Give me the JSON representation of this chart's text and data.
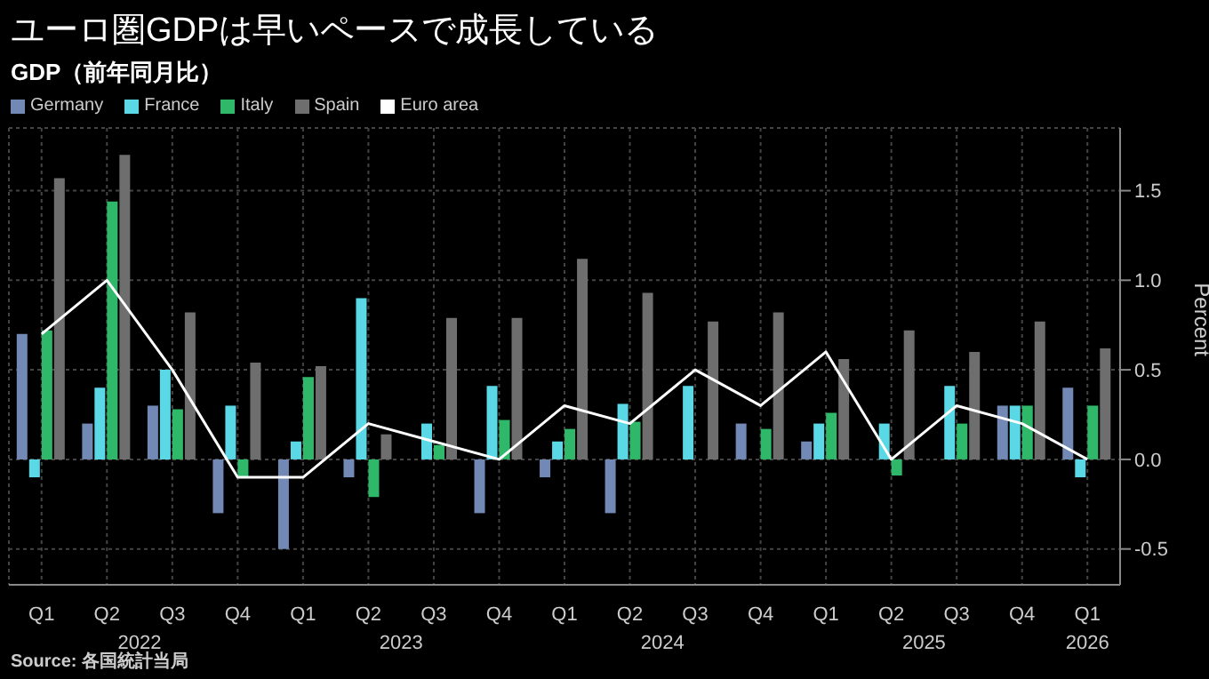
{
  "chart_data": {
    "type": "bar",
    "title": "ユーロ圏GDPは早いペースで成長している",
    "subtitle": "GDP（前年同月比）",
    "ylabel": "Percent",
    "categories": [
      "Q1",
      "Q2",
      "Q3",
      "Q4",
      "Q1",
      "Q2",
      "Q3",
      "Q4",
      "Q1",
      "Q2",
      "Q3",
      "Q4",
      "Q1",
      "Q2",
      "Q3",
      "Q4",
      "Q1"
    ],
    "series": [
      {
        "name": "Germany",
        "color": "#7289b5",
        "values": [
          0.7,
          0.2,
          0.3,
          -0.3,
          -0.5,
          -0.1,
          0.0,
          -0.3,
          -0.1,
          -0.3,
          0.0,
          0.2,
          0.1,
          0.0,
          0.0,
          0.3,
          0.4
        ]
      },
      {
        "name": "France",
        "color": "#5ad8e6",
        "values": [
          -0.1,
          0.4,
          0.5,
          0.3,
          0.1,
          0.9,
          0.2,
          0.41,
          0.1,
          0.31,
          0.41,
          0.0,
          0.2,
          0.2,
          0.41,
          0.3,
          -0.1
        ]
      },
      {
        "name": "Italy",
        "color": "#2fb86a",
        "values": [
          0.72,
          1.44,
          0.28,
          -0.1,
          0.46,
          -0.21,
          0.08,
          0.22,
          0.17,
          0.21,
          0.0,
          0.17,
          0.26,
          -0.09,
          0.2,
          0.3,
          0.3
        ]
      },
      {
        "name": "Spain",
        "color": "#6e6e6e",
        "values": [
          1.57,
          1.7,
          0.82,
          0.54,
          0.52,
          0.14,
          0.79,
          0.79,
          1.12,
          0.93,
          0.77,
          0.82,
          0.56,
          0.72,
          0.6,
          0.77,
          0.62
        ]
      },
      {
        "name": "Euro area",
        "type": "line",
        "color": "#ffffff",
        "values": [
          0.7,
          1.0,
          0.5,
          -0.1,
          -0.1,
          0.2,
          0.1,
          0.0,
          0.3,
          0.2,
          0.5,
          0.3,
          0.6,
          0.0,
          0.3,
          0.2,
          0.0
        ]
      }
    ],
    "ylim": [
      -0.7,
      1.85
    ],
    "yticks": [
      {
        "value": -0.5,
        "label": "-0.5"
      },
      {
        "value": 0,
        "label": "0.0"
      },
      {
        "value": 0.5,
        "label": "0.5"
      },
      {
        "value": 1,
        "label": "1.0"
      },
      {
        "value": 1.5,
        "label": "1.5"
      }
    ],
    "grid": true,
    "legend": "top left",
    "marker": "none",
    "line_style": "solid",
    "annotations": [
      "2022",
      "2023",
      "2024",
      "2025",
      "2026",
      "Source: 各国統計当局"
    ]
  }
}
